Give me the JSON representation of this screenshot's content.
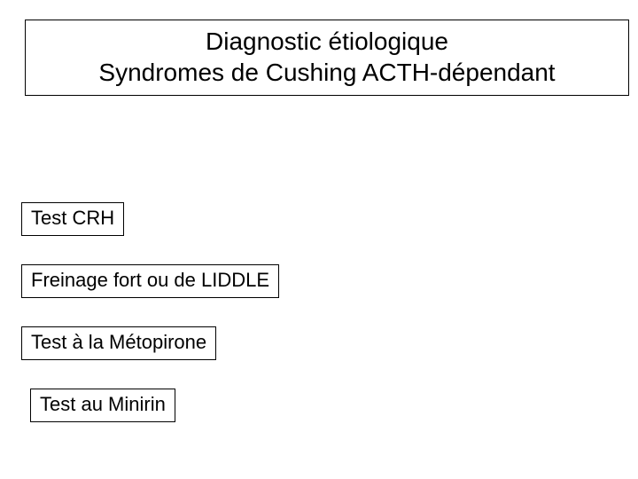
{
  "title": {
    "line1": "Diagnostic étiologique",
    "line2": "Syndromes de Cushing ACTH-dépendant"
  },
  "items": [
    "Test CRH",
    "Freinage fort ou de LIDDLE",
    "Test à la Métopirone",
    "Test au Minirin"
  ],
  "style": {
    "font_family": "Comic Sans MS",
    "title_fontsize": 28,
    "item_fontsize": 22,
    "border_color": "#000000",
    "text_color": "#000000",
    "background_color": "#ffffff"
  }
}
